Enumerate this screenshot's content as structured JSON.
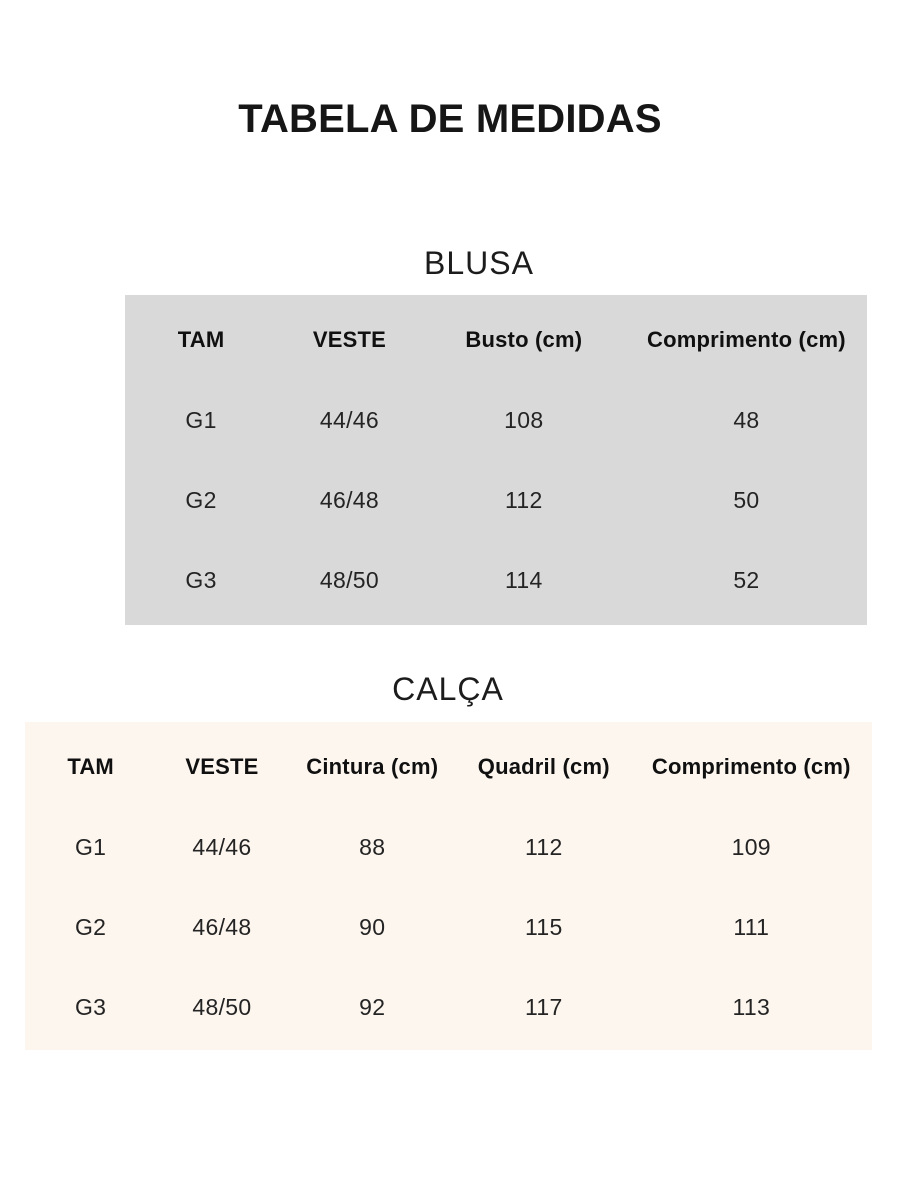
{
  "page": {
    "title": "TABELA DE MEDIDAS",
    "background": "#ffffff",
    "text_color": "#161616"
  },
  "tables": [
    {
      "id": "blusa",
      "section_title": "BLUSA",
      "background": "#d9d9d9",
      "columns": [
        "TAM",
        "VESTE",
        "Busto (cm)",
        "Comprimento (cm)"
      ],
      "rows": [
        [
          "G1",
          "44/46",
          "108",
          "48"
        ],
        [
          "G2",
          "46/48",
          "112",
          "50"
        ],
        [
          "G3",
          "48/50",
          "114",
          "52"
        ]
      ]
    },
    {
      "id": "calca",
      "section_title": "CALÇA",
      "background": "#fdf6ef",
      "columns": [
        "TAM",
        "VESTE",
        "Cintura (cm)",
        "Quadril (cm)",
        "Comprimento (cm)"
      ],
      "rows": [
        [
          "G1",
          "44/46",
          "88",
          "112",
          "109"
        ],
        [
          "G2",
          "46/48",
          "90",
          "115",
          "111"
        ],
        [
          "G3",
          "48/50",
          "92",
          "117",
          "113"
        ]
      ]
    }
  ]
}
